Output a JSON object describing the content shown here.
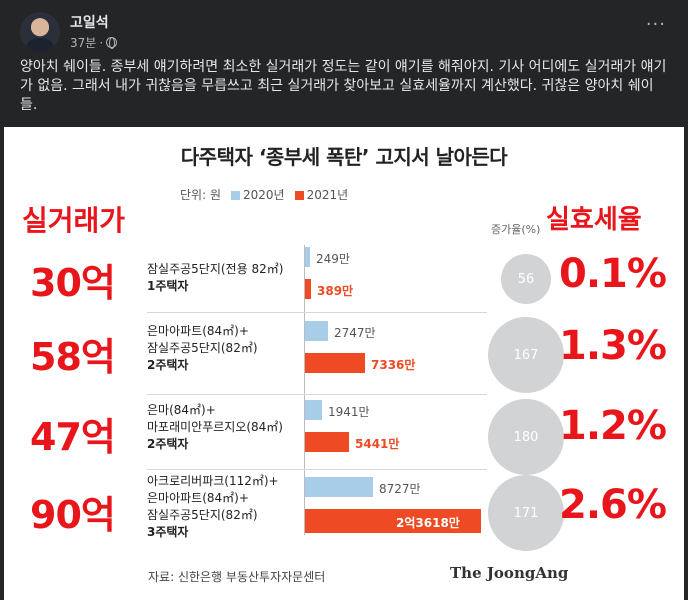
{
  "post": {
    "author": "고일석",
    "time": "37분",
    "text": "양아치 쉐이들. 종부세 얘기하려면 최소한 실거래가 정도는 같이 얘기를 해줘야지. 기사 어디에도 실거래가 얘기가 없음. 그래서 내가 귀찮음을 무릅쓰고 최근 실거래가 찾아보고 실효세율까지 계산했다. 귀찮은 양아치 쉐이들.",
    "more_label": "···"
  },
  "figure": {
    "title": "다주택자 ‘종부세 폭탄’ 고지서 날아든다",
    "unit": "단위: 원",
    "legend_2020": "2020년",
    "legend_2021": "2021년",
    "left_label": "실거래가",
    "right_label": "실효세율",
    "rate_label": "증가율(%)",
    "source": "자료: 신한은행 부동산투자자문센터",
    "brand": "The JoongAng",
    "colors": {
      "y2020": "#a7cde9",
      "y2021": "#ee4a23",
      "accent": "#e8151b"
    },
    "rows": [
      {
        "price": "30억",
        "line1": "잠실주공5단지(전용 82㎡)",
        "line2": "",
        "line3": "1주택자",
        "v2020": "249만",
        "v2021": "389만",
        "rate": "56",
        "eff": "0.1%"
      },
      {
        "price": "58억",
        "line1": "은마아파트(84㎡)+",
        "line2": "잠실주공5단지(82㎡)",
        "line3": "2주택자",
        "v2020": "2747만",
        "v2021": "7336만",
        "rate": "167",
        "eff": "1.3%"
      },
      {
        "price": "47억",
        "line1": "은마(84㎡)+",
        "line2": "마포래미안푸르지오(84㎡)",
        "line3": "2주택자",
        "v2020": "1941만",
        "v2021": "5441만",
        "rate": "180",
        "eff": "1.2%"
      },
      {
        "price": "90억",
        "line1": "아크로리버파크(112㎡)+",
        "line2": "은마아파트(84㎡)+",
        "line3": "잠실주공5단지(82㎡)",
        "line4": "3주택자",
        "v2020": "8727만",
        "v2021": "2억3618만",
        "rate": "171",
        "eff": "2.6%"
      }
    ]
  }
}
